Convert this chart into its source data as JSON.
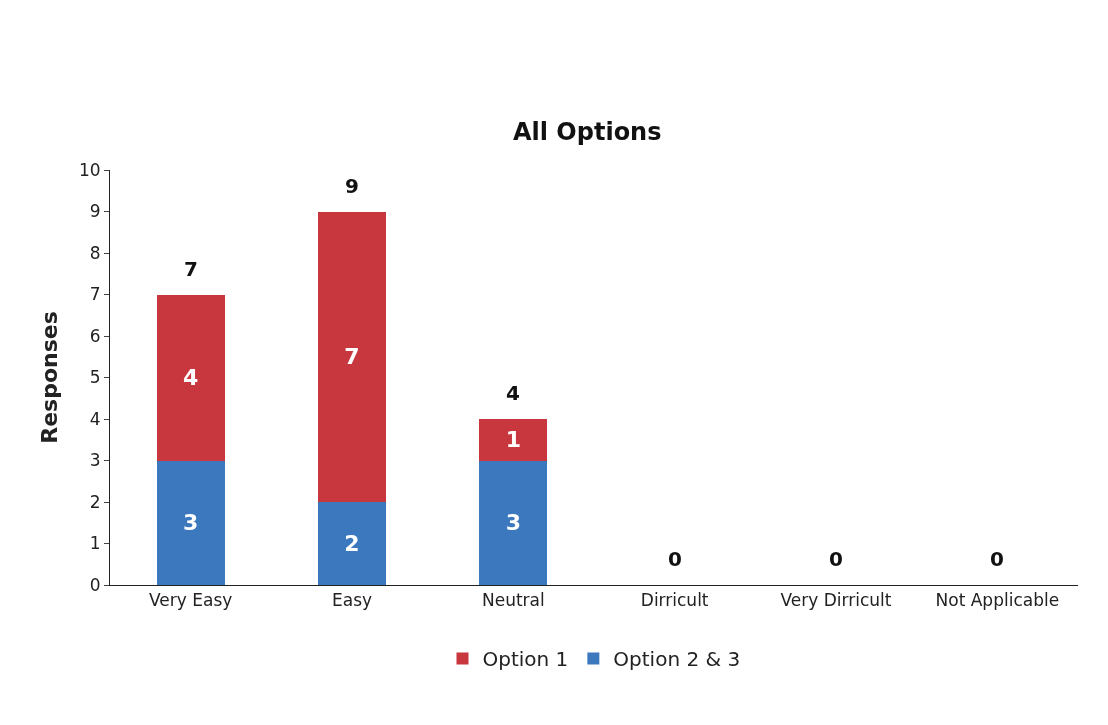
{
  "chart_data": {
    "type": "bar",
    "title": "All Options",
    "ylabel": "Responses",
    "stacked": true,
    "categories": [
      "Very Easy",
      "Easy",
      "Neutral",
      "Dirricult",
      "Very Dirricult",
      "Not Applicable"
    ],
    "series": [
      {
        "name": "Option 2 & 3",
        "color": "#3b78bd",
        "values": [
          3,
          2,
          3,
          0,
          0,
          0
        ],
        "value_labels": [
          "3",
          "2",
          "3",
          null,
          null,
          null
        ]
      },
      {
        "name": "Option 1",
        "color": "#c8373e",
        "values": [
          4,
          7,
          1,
          0,
          0,
          0
        ],
        "value_labels": [
          "4",
          "7",
          "1",
          null,
          null,
          null
        ]
      }
    ],
    "totals": [
      "7",
      "9",
      "4",
      "0",
      "0",
      "0"
    ],
    "ylim": [
      0,
      10
    ],
    "yticks": [
      0,
      1,
      2,
      3,
      4,
      5,
      6,
      7,
      8,
      9,
      10
    ],
    "legend": "bottom"
  }
}
